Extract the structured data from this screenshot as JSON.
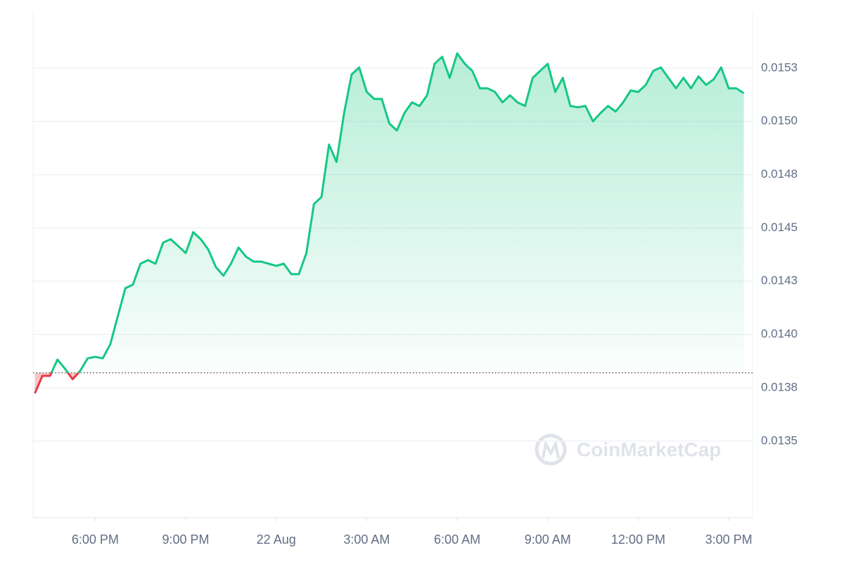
{
  "chart_data": {
    "type": "line",
    "x": [
      16,
      16.25,
      16.5,
      16.75,
      17,
      17.25,
      17.5,
      17.75,
      18,
      18.25,
      18.5,
      18.75,
      19,
      19.25,
      19.5,
      19.75,
      20,
      20.25,
      20.5,
      20.75,
      21,
      21.25,
      21.5,
      21.75,
      22,
      22.25,
      22.5,
      22.75,
      23,
      23.25,
      23.5,
      23.75,
      24,
      24.25,
      24.5,
      24.75,
      25,
      25.25,
      25.5,
      25.75,
      26,
      26.25,
      26.5,
      26.75,
      27,
      27.25,
      27.5,
      27.75,
      28,
      28.25,
      28.5,
      28.75,
      29,
      29.25,
      29.5,
      29.75,
      30,
      30.25,
      30.5,
      30.75,
      31,
      31.25,
      31.5,
      31.75,
      32,
      32.25,
      32.5,
      32.75,
      33,
      33.25,
      33.5,
      33.75,
      34,
      34.25,
      34.5,
      34.75,
      35,
      35.25,
      35.5,
      35.75,
      36,
      36.25,
      36.5,
      36.75,
      37,
      37.25,
      37.5,
      37.75,
      38,
      38.25,
      38.5,
      38.75,
      39,
      39.25,
      39.5
    ],
    "series": [
      {
        "color": "#16c784",
        "below_color": "#ea3943",
        "values": [
          0.013724,
          0.013806,
          0.013806,
          0.013882,
          0.013839,
          0.01379,
          0.013829,
          0.013888,
          0.013895,
          0.013888,
          0.013954,
          0.014086,
          0.014217,
          0.014234,
          0.014332,
          0.014349,
          0.014332,
          0.014431,
          0.014447,
          0.014415,
          0.014382,
          0.01448,
          0.014447,
          0.014398,
          0.014316,
          0.014276,
          0.014332,
          0.014408,
          0.014365,
          0.014342,
          0.014342,
          0.014332,
          0.014322,
          0.014332,
          0.014283,
          0.014283,
          0.014382,
          0.014612,
          0.014645,
          0.014891,
          0.014809,
          0.015039,
          0.01522,
          0.015253,
          0.015138,
          0.015105,
          0.015105,
          0.01499,
          0.014957,
          0.015039,
          0.015089,
          0.015072,
          0.015122,
          0.01527,
          0.015303,
          0.015204,
          0.015319,
          0.01527,
          0.015237,
          0.015155,
          0.015155,
          0.015138,
          0.015089,
          0.015122,
          0.015089,
          0.015072,
          0.015204,
          0.015237,
          0.01527,
          0.015138,
          0.015204,
          0.015072,
          0.015066,
          0.015072,
          0.015,
          0.015039,
          0.015072,
          0.015046,
          0.015089,
          0.015145,
          0.015138,
          0.015171,
          0.015237,
          0.015253,
          0.015204,
          0.015155,
          0.015204,
          0.015155,
          0.015211,
          0.015171,
          0.015197,
          0.015253,
          0.015155,
          0.015155,
          0.015132
        ]
      }
    ],
    "baseline": 0.01382,
    "xlim": [
      15.94,
      39.79
    ],
    "xticks": [
      {
        "value": 18,
        "label": "6:00 PM"
      },
      {
        "value": 21,
        "label": "9:00 PM"
      },
      {
        "value": 24,
        "label": "22 Aug"
      },
      {
        "value": 27,
        "label": "3:00 AM"
      },
      {
        "value": 30,
        "label": "6:00 AM"
      },
      {
        "value": 33,
        "label": "9:00 AM"
      },
      {
        "value": 36,
        "label": "12:00 PM"
      },
      {
        "value": 39,
        "label": "3:00 PM"
      }
    ],
    "ylim": [
      0.01314,
      0.01551
    ],
    "yticks": [
      {
        "value": 0.01525,
        "label": "0.0153"
      },
      {
        "value": 0.015,
        "label": "0.0150"
      },
      {
        "value": 0.01475,
        "label": "0.0148"
      },
      0.0145,
      {
        "value": 0.01425,
        "label": "0.0143"
      },
      {
        "value": 0.014,
        "label": "0.0140"
      },
      {
        "value": 0.01375,
        "label": "0.0138"
      },
      0.0135
    ],
    "grid": true,
    "watermark": "CoinMarketCap"
  }
}
